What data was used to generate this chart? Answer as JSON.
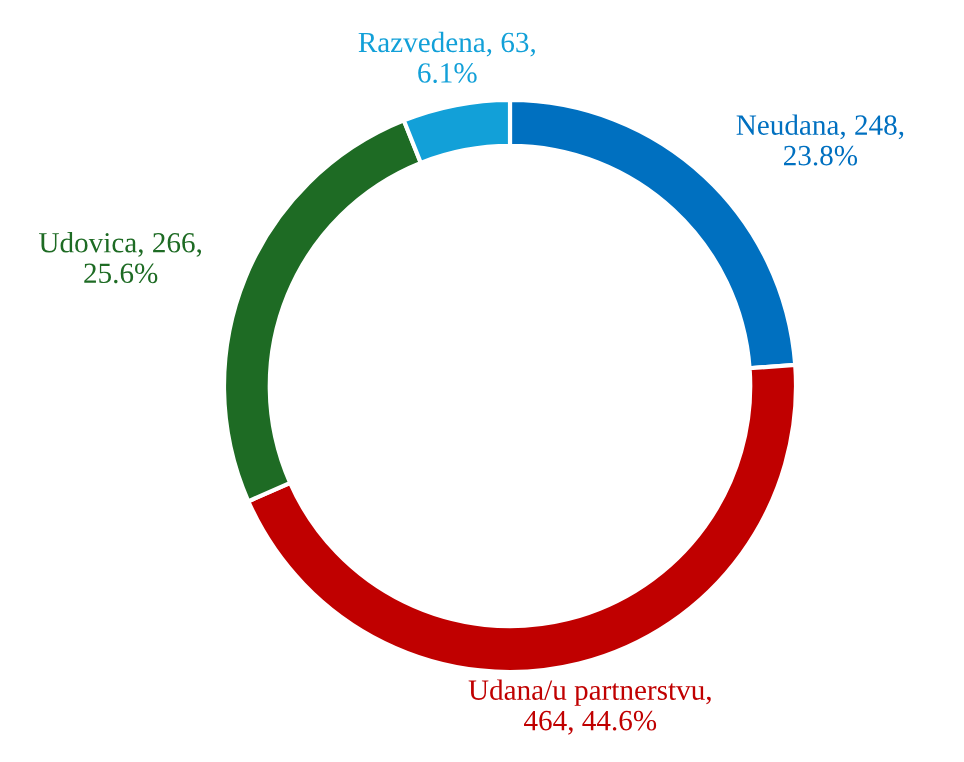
{
  "chart_data": {
    "type": "donut",
    "categories": [
      "Neudana",
      "Udana/u partnerstvu",
      "Udovica",
      "Razvedena"
    ],
    "values": [
      248,
      464,
      266,
      63
    ],
    "colors": [
      "#0070c0",
      "#c00000",
      "#1e6b24",
      "#12a0d8"
    ],
    "value_labels": [
      ", 248, 23.8%",
      ", 464, 44.6%",
      ", 266, 25.6%",
      ", 63, 6.1%"
    ]
  }
}
